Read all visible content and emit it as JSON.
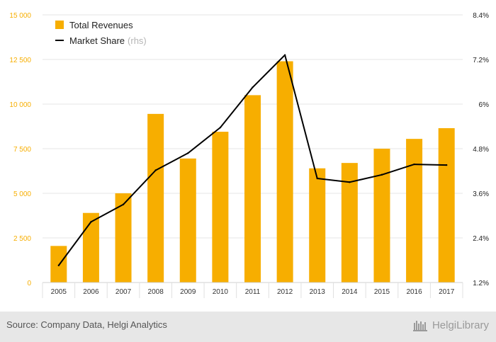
{
  "chart_data": {
    "type": "bar",
    "categories": [
      "2005",
      "2006",
      "2007",
      "2008",
      "2009",
      "2010",
      "2011",
      "2012",
      "2013",
      "2014",
      "2015",
      "2016",
      "2017"
    ],
    "series": [
      {
        "name": "Total Revenues",
        "type": "bar",
        "axis": "left",
        "color": "#F7AE00",
        "values": [
          2050,
          3900,
          5000,
          9450,
          6950,
          8450,
          10500,
          12400,
          6400,
          6700,
          7500,
          8050,
          8650
        ]
      },
      {
        "name": "Market Share",
        "name_suffix": "(rhs)",
        "type": "line",
        "axis": "right",
        "color": "#000000",
        "values": [
          1.66,
          2.83,
          3.3,
          4.22,
          4.68,
          5.37,
          6.45,
          7.32,
          4.0,
          3.9,
          4.1,
          4.38,
          4.36
        ]
      }
    ],
    "y_left": {
      "ticks": [
        0,
        2500,
        5000,
        7500,
        10000,
        12500,
        15000
      ],
      "tick_labels": [
        "0",
        "2 500",
        "5 000",
        "7 500",
        "10 000",
        "12 500",
        "15 000"
      ],
      "range": [
        0,
        15000
      ],
      "color": "#F7AE00"
    },
    "y_right": {
      "ticks": [
        1.2,
        2.4,
        3.6,
        4.8,
        6,
        7.2,
        8.4
      ],
      "tick_labels": [
        "1.2%",
        "2.4%",
        "3.6%",
        "4.8%",
        "6%",
        "7.2%",
        "8.4%"
      ],
      "range": [
        1.2,
        8.4
      ]
    },
    "legend": {
      "position": "top-left"
    },
    "grid": true
  },
  "footer": {
    "source": "Source: Company Data, Helgi Analytics",
    "brand": "HelgiLibrary"
  }
}
